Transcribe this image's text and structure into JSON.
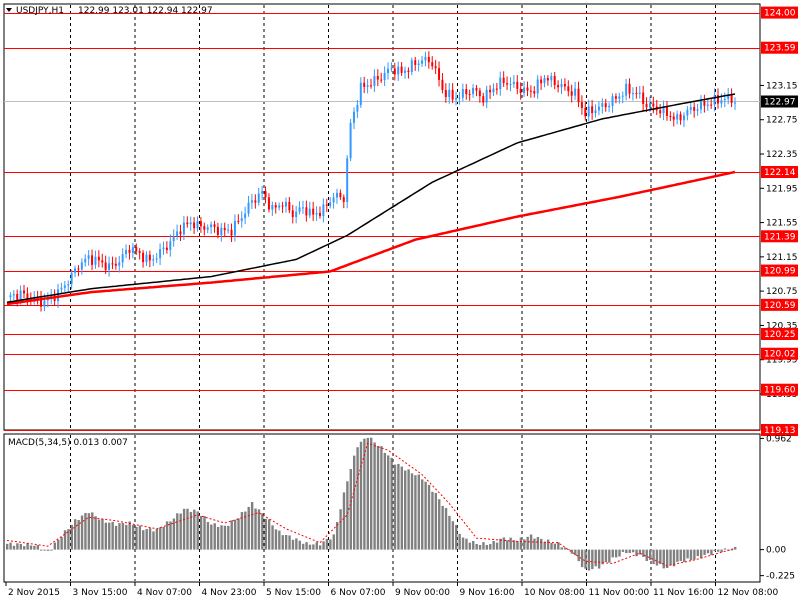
{
  "chart_data": {
    "type": "candlestick",
    "header": {
      "symbol": "USDJPY,H1",
      "ohlc": "122.99 123.01 122.94 122.97"
    },
    "price_axis": {
      "range": [
        119.13,
        124.1
      ],
      "ticks": [
        "123.15",
        "122.75",
        "122.35",
        "121.95",
        "121.55",
        "121.15",
        "120.75",
        "120.35",
        "119.95",
        "119.55"
      ]
    },
    "current_price": {
      "value": 122.97,
      "label": "122.97"
    },
    "levels": [
      {
        "value": 124.0,
        "label": "124.00"
      },
      {
        "value": 123.59,
        "label": "123.59"
      },
      {
        "value": 122.14,
        "label": "122.14"
      },
      {
        "value": 121.39,
        "label": "121.39"
      },
      {
        "value": 120.99,
        "label": "120.99"
      },
      {
        "value": 120.59,
        "label": "120.59"
      },
      {
        "value": 120.25,
        "label": "120.25"
      },
      {
        "value": 120.02,
        "label": "120.02"
      },
      {
        "value": 119.6,
        "label": "119.60"
      },
      {
        "value": 119.13,
        "label": "119.13"
      }
    ],
    "x_labels": [
      "2 Nov 2015",
      "3 Nov 15:00",
      "4 Nov 07:00",
      "4 Nov 23:00",
      "5 Nov 15:00",
      "6 Nov 07:00",
      "9 Nov 00:00",
      "9 Nov 16:00",
      "10 Nov 08:00",
      "11 Nov 00:00",
      "11 Nov 16:00",
      "12 Nov 08:00"
    ],
    "close_path": [
      [
        0,
        120.68
      ],
      [
        4,
        120.72
      ],
      [
        8,
        120.65
      ],
      [
        11,
        120.62
      ],
      [
        15,
        120.73
      ],
      [
        18,
        120.87
      ],
      [
        21,
        121.05
      ],
      [
        24,
        121.14
      ],
      [
        27,
        121.1
      ],
      [
        30,
        121.03
      ],
      [
        33,
        121.1
      ],
      [
        36,
        121.26
      ],
      [
        39,
        121.18
      ],
      [
        42,
        121.1
      ],
      [
        45,
        121.2
      ],
      [
        48,
        121.32
      ],
      [
        51,
        121.48
      ],
      [
        54,
        121.55
      ],
      [
        57,
        121.5
      ],
      [
        60,
        121.5
      ],
      [
        63,
        121.45
      ],
      [
        66,
        121.46
      ],
      [
        69,
        121.62
      ],
      [
        72,
        121.8
      ],
      [
        75,
        121.9
      ],
      [
        78,
        121.7
      ],
      [
        81,
        121.78
      ],
      [
        84,
        121.65
      ],
      [
        87,
        121.72
      ],
      [
        90,
        121.64
      ],
      [
        93,
        121.7
      ],
      [
        96,
        121.86
      ],
      [
        99,
        121.84
      ],
      [
        101,
        122.7
      ],
      [
        104,
        123.12
      ],
      [
        107,
        123.18
      ],
      [
        110,
        123.25
      ],
      [
        113,
        123.35
      ],
      [
        116,
        123.3
      ],
      [
        119,
        123.38
      ],
      [
        122,
        123.45
      ],
      [
        125,
        123.42
      ],
      [
        128,
        123.1
      ],
      [
        131,
        123.0
      ],
      [
        134,
        123.05
      ],
      [
        137,
        123.1
      ],
      [
        140,
        123.0
      ],
      [
        143,
        123.12
      ],
      [
        146,
        123.2
      ],
      [
        149,
        123.15
      ],
      [
        152,
        123.08
      ],
      [
        155,
        123.1
      ],
      [
        158,
        123.25
      ],
      [
        161,
        123.18
      ],
      [
        164,
        123.12
      ],
      [
        167,
        123.05
      ],
      [
        170,
        122.82
      ],
      [
        173,
        122.88
      ],
      [
        176,
        122.92
      ],
      [
        179,
        123.0
      ],
      [
        182,
        123.1
      ],
      [
        185,
        123.06
      ],
      [
        188,
        122.92
      ],
      [
        191,
        122.88
      ],
      [
        194,
        122.82
      ],
      [
        197,
        122.75
      ],
      [
        200,
        122.85
      ],
      [
        203,
        122.9
      ],
      [
        206,
        122.94
      ],
      [
        209,
        122.98
      ],
      [
        212,
        123.0
      ],
      [
        214,
        122.97
      ]
    ],
    "ma_black": [
      [
        0,
        120.62
      ],
      [
        25,
        120.78
      ],
      [
        60,
        120.92
      ],
      [
        85,
        121.12
      ],
      [
        100,
        121.4
      ],
      [
        125,
        122.02
      ],
      [
        150,
        122.48
      ],
      [
        175,
        122.76
      ],
      [
        200,
        122.95
      ],
      [
        214,
        123.05
      ]
    ],
    "ma_red": [
      [
        0,
        120.6
      ],
      [
        25,
        120.74
      ],
      [
        60,
        120.85
      ],
      [
        95,
        120.98
      ],
      [
        120,
        121.35
      ],
      [
        150,
        121.62
      ],
      [
        180,
        121.85
      ],
      [
        214,
        122.14
      ]
    ],
    "macd": {
      "label": "MACD(5,34,5) 0.013 0.007",
      "range": [
        -0.28,
        1.0
      ],
      "ticks": [
        "0.962",
        "0.00",
        "-0.225"
      ],
      "hist_path": [
        [
          0,
          0.05
        ],
        [
          8,
          0.04
        ],
        [
          12,
          -0.02
        ],
        [
          16,
          0.12
        ],
        [
          20,
          0.25
        ],
        [
          24,
          0.33
        ],
        [
          28,
          0.25
        ],
        [
          32,
          0.22
        ],
        [
          36,
          0.23
        ],
        [
          40,
          0.18
        ],
        [
          44,
          0.17
        ],
        [
          48,
          0.25
        ],
        [
          52,
          0.35
        ],
        [
          56,
          0.33
        ],
        [
          60,
          0.22
        ],
        [
          64,
          0.2
        ],
        [
          68,
          0.28
        ],
        [
          72,
          0.4
        ],
        [
          76,
          0.28
        ],
        [
          80,
          0.15
        ],
        [
          84,
          0.1
        ],
        [
          88,
          0.05
        ],
        [
          92,
          0.05
        ],
        [
          96,
          0.12
        ],
        [
          100,
          0.6
        ],
        [
          103,
          0.9
        ],
        [
          106,
          0.98
        ],
        [
          110,
          0.88
        ],
        [
          114,
          0.75
        ],
        [
          118,
          0.68
        ],
        [
          122,
          0.62
        ],
        [
          126,
          0.48
        ],
        [
          130,
          0.3
        ],
        [
          134,
          0.1
        ],
        [
          138,
          0.05
        ],
        [
          142,
          0.05
        ],
        [
          146,
          0.1
        ],
        [
          150,
          0.08
        ],
        [
          154,
          0.12
        ],
        [
          158,
          0.08
        ],
        [
          162,
          0.05
        ],
        [
          166,
          -0.02
        ],
        [
          170,
          -0.18
        ],
        [
          174,
          -0.15
        ],
        [
          178,
          -0.08
        ],
        [
          182,
          -0.02
        ],
        [
          186,
          -0.05
        ],
        [
          190,
          -0.12
        ],
        [
          194,
          -0.16
        ],
        [
          198,
          -0.1
        ],
        [
          202,
          -0.08
        ],
        [
          206,
          -0.04
        ],
        [
          210,
          -0.01
        ],
        [
          214,
          0.01
        ]
      ],
      "signal_path": [
        [
          0,
          0.08
        ],
        [
          12,
          0.03
        ],
        [
          24,
          0.28
        ],
        [
          32,
          0.25
        ],
        [
          44,
          0.18
        ],
        [
          56,
          0.3
        ],
        [
          64,
          0.23
        ],
        [
          74,
          0.32
        ],
        [
          82,
          0.18
        ],
        [
          92,
          0.06
        ],
        [
          100,
          0.3
        ],
        [
          106,
          0.92
        ],
        [
          112,
          0.86
        ],
        [
          122,
          0.65
        ],
        [
          130,
          0.4
        ],
        [
          138,
          0.1
        ],
        [
          150,
          0.07
        ],
        [
          162,
          0.06
        ],
        [
          170,
          -0.1
        ],
        [
          178,
          -0.12
        ],
        [
          186,
          -0.03
        ],
        [
          194,
          -0.14
        ],
        [
          202,
          -0.09
        ],
        [
          214,
          0.01
        ]
      ]
    }
  },
  "colors": {
    "bull": "#3399ff",
    "bear": "#ff0000",
    "level": "#ff0000",
    "ma_black": "#000000",
    "ma_red": "#ff0000",
    "hist": "#808080",
    "signal": "#ff0000",
    "grid": "#000000"
  }
}
